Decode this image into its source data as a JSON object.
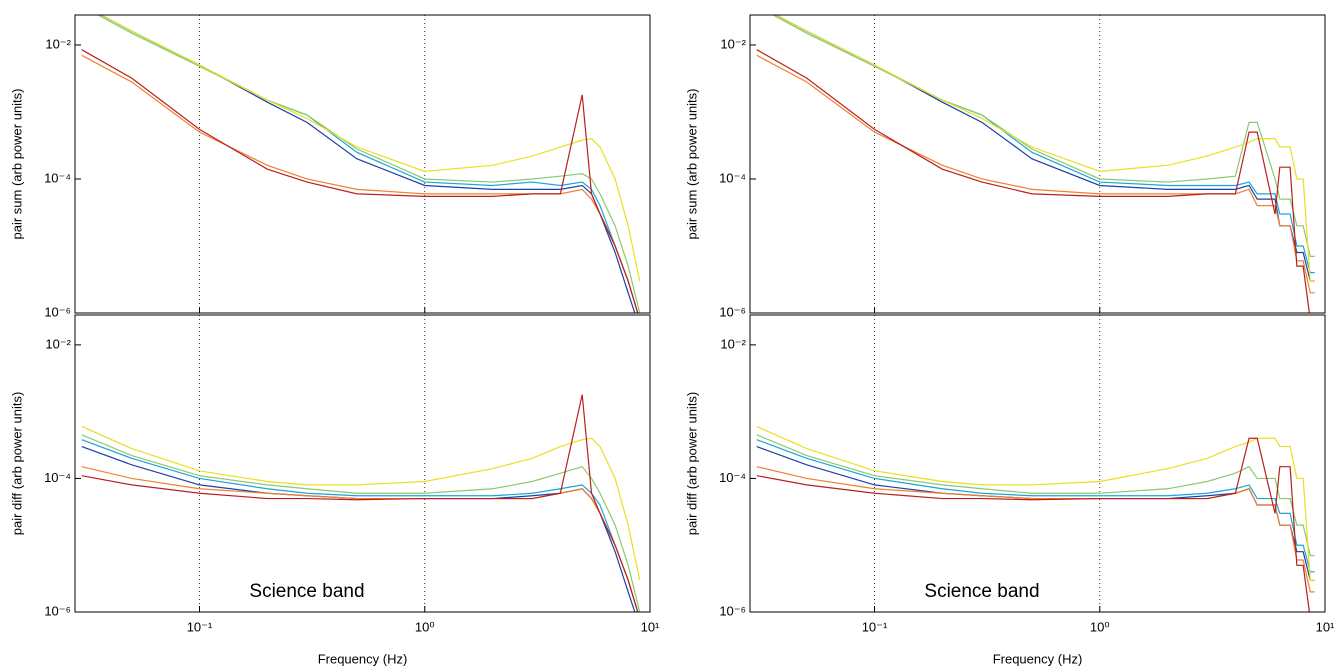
{
  "chart_data": [
    {
      "type": "line",
      "ylabel": "pair sum (arb power units)",
      "xlog": true,
      "ylog": true,
      "xlim": [
        0.028,
        10
      ],
      "ylim": [
        1e-06,
        0.028
      ],
      "xticks": [
        0.1,
        1,
        10
      ],
      "yticks": [
        {
          "value": 1e-06,
          "label": "10⁻⁶"
        },
        {
          "value": 0.0001,
          "label": "10⁻⁴"
        },
        {
          "value": 0.01,
          "label": "10⁻²"
        }
      ],
      "grid": true,
      "x": [
        0.03,
        0.05,
        0.1,
        0.2,
        0.3,
        0.5,
        1,
        2,
        3,
        4,
        5,
        5.5,
        6,
        7,
        8,
        9
      ],
      "series": [
        {
          "color": "#1f3fa8",
          "values": [
            0.04,
            0.016,
            0.005,
            0.0014,
            0.0007,
            0.0002,
            8e-05,
            7e-05,
            7e-05,
            7e-05,
            8e-05,
            6e-05,
            3e-05,
            8e-06,
            2e-06,
            6e-07
          ]
        },
        {
          "color": "#1aa6d8",
          "values": [
            0.04,
            0.016,
            0.005,
            0.0015,
            0.0009,
            0.00025,
            9e-05,
            8e-05,
            9e-05,
            8e-05,
            9e-05,
            7e-05,
            4e-05,
            1e-05,
            3e-06,
            8e-07
          ]
        },
        {
          "color": "#8cc870",
          "values": [
            0.038,
            0.015,
            0.0048,
            0.0015,
            0.0009,
            0.00028,
            0.0001,
            9e-05,
            0.0001,
            0.00011,
            0.00012,
            0.0001,
            6e-05,
            2e-05,
            5e-06,
            1e-06
          ]
        },
        {
          "color": "#e8e020",
          "values": [
            0.04,
            0.016,
            0.005,
            0.0015,
            0.0008,
            0.0003,
            0.00013,
            0.00016,
            0.00022,
            0.0003,
            0.00038,
            0.0004,
            0.0003,
            0.0001,
            2e-05,
            3e-06
          ]
        },
        {
          "color": "#f08030",
          "values": [
            0.007,
            0.0028,
            0.0005,
            0.00016,
            0.0001,
            7e-05,
            6e-05,
            6e-05,
            6e-05,
            6e-05,
            7e-05,
            5e-05,
            3e-05,
            1e-05,
            3e-06,
            8e-07
          ]
        },
        {
          "color": "#b8201c",
          "values": [
            0.0085,
            0.0032,
            0.00055,
            0.00014,
            9e-05,
            6e-05,
            5.5e-05,
            5.5e-05,
            6e-05,
            6e-05,
            0.0018,
            6e-05,
            3e-05,
            1e-05,
            3e-06,
            8e-07
          ]
        }
      ]
    },
    {
      "type": "line",
      "ylabel": "pair diff (arb power units)",
      "xlabel": "Frequency (Hz)",
      "annotation": "Science band",
      "xlog": true,
      "ylog": true,
      "xlim": [
        0.028,
        10
      ],
      "ylim": [
        1e-06,
        0.028
      ],
      "xticks": [
        {
          "value": 0.1,
          "label": "10⁻¹"
        },
        {
          "value": 1,
          "label": "10⁰"
        },
        {
          "value": 10,
          "label": "10¹"
        }
      ],
      "yticks": [
        {
          "value": 1e-06,
          "label": "10⁻⁶"
        },
        {
          "value": 0.0001,
          "label": "10⁻⁴"
        },
        {
          "value": 0.01,
          "label": "10⁻²"
        }
      ],
      "grid": true,
      "x": [
        0.03,
        0.05,
        0.1,
        0.2,
        0.3,
        0.5,
        1,
        2,
        3,
        4,
        5,
        5.5,
        6,
        7,
        8,
        9
      ],
      "series": [
        {
          "color": "#1f3fa8",
          "values": [
            0.0003,
            0.00016,
            8e-05,
            6e-05,
            5.5e-05,
            5e-05,
            5e-05,
            5e-05,
            5.5e-05,
            6e-05,
            7e-05,
            5e-05,
            3e-05,
            8e-06,
            2e-06,
            6e-07
          ]
        },
        {
          "color": "#1aa6d8",
          "values": [
            0.00038,
            0.0002,
            0.0001,
            7e-05,
            6e-05,
            5.5e-05,
            5.5e-05,
            5.5e-05,
            6e-05,
            7e-05,
            8e-05,
            6e-05,
            4e-05,
            1e-05,
            3e-06,
            8e-07
          ]
        },
        {
          "color": "#8cc870",
          "values": [
            0.00045,
            0.00022,
            0.00011,
            8e-05,
            7e-05,
            6e-05,
            6e-05,
            7e-05,
            9e-05,
            0.00012,
            0.00015,
            0.0001,
            6e-05,
            2e-05,
            5e-06,
            1e-06
          ]
        },
        {
          "color": "#e8e020",
          "values": [
            0.0006,
            0.00028,
            0.00013,
            9e-05,
            8e-05,
            8e-05,
            9e-05,
            0.00014,
            0.0002,
            0.0003,
            0.00038,
            0.0004,
            0.0003,
            0.0001,
            2e-05,
            3e-06
          ]
        },
        {
          "color": "#f08030",
          "values": [
            0.00015,
            0.0001,
            7e-05,
            6e-05,
            5.5e-05,
            5e-05,
            5e-05,
            5e-05,
            5e-05,
            6e-05,
            7e-05,
            5e-05,
            3e-05,
            1e-05,
            3e-06,
            8e-07
          ]
        },
        {
          "color": "#b8201c",
          "values": [
            0.00011,
            8e-05,
            6e-05,
            5e-05,
            5e-05,
            4.8e-05,
            5e-05,
            5e-05,
            5e-05,
            6e-05,
            0.0018,
            6e-05,
            3e-05,
            1e-05,
            3e-06,
            8e-07
          ]
        }
      ]
    },
    {
      "type": "line",
      "ylabel": "pair sum (arb power units)",
      "xlog": true,
      "ylog": true,
      "xlim": [
        0.028,
        10
      ],
      "ylim": [
        1e-06,
        0.028
      ],
      "xticks": [
        0.1,
        1,
        10
      ],
      "yticks": [
        {
          "value": 1e-06,
          "label": "10⁻⁶"
        },
        {
          "value": 0.0001,
          "label": "10⁻⁴"
        },
        {
          "value": 0.01,
          "label": "10⁻²"
        }
      ],
      "grid": true,
      "x": [
        0.03,
        0.05,
        0.1,
        0.2,
        0.3,
        0.5,
        1,
        2,
        3,
        4,
        4.6,
        5,
        6,
        6.3,
        7,
        7.5,
        8,
        8.6,
        9
      ],
      "series": [
        {
          "color": "#1f3fa8",
          "values": [
            0.04,
            0.016,
            0.005,
            0.0014,
            0.0007,
            0.0002,
            8e-05,
            7e-05,
            7e-05,
            7e-05,
            8e-05,
            5e-05,
            5e-05,
            2e-05,
            2e-05,
            8e-06,
            8e-06,
            3e-06,
            3e-06
          ]
        },
        {
          "color": "#1aa6d8",
          "values": [
            0.04,
            0.016,
            0.005,
            0.0015,
            0.0009,
            0.00025,
            9e-05,
            8e-05,
            8e-05,
            8e-05,
            9e-05,
            6e-05,
            6e-05,
            3e-05,
            3e-05,
            1e-05,
            1e-05,
            4e-06,
            4e-06
          ]
        },
        {
          "color": "#8cc870",
          "values": [
            0.038,
            0.015,
            0.0048,
            0.0015,
            0.0009,
            0.00028,
            0.0001,
            9e-05,
            0.0001,
            0.00011,
            0.0007,
            0.0007,
            0.0001,
            5e-05,
            5e-05,
            2e-05,
            2e-05,
            7e-06,
            7e-06
          ]
        },
        {
          "color": "#e8e020",
          "values": [
            0.04,
            0.016,
            0.005,
            0.0015,
            0.0008,
            0.0003,
            0.00013,
            0.00016,
            0.00022,
            0.0003,
            0.00035,
            0.0004,
            0.0004,
            0.0003,
            0.0003,
            0.0001,
            0.0001,
            3e-06,
            3e-06
          ]
        },
        {
          "color": "#f08030",
          "values": [
            0.007,
            0.0028,
            0.0005,
            0.00016,
            0.0001,
            7e-05,
            6e-05,
            6e-05,
            6e-05,
            6e-05,
            7e-05,
            4e-05,
            4e-05,
            2e-05,
            2e-05,
            6e-06,
            6e-06,
            2e-06,
            2e-06
          ]
        },
        {
          "color": "#b8201c",
          "values": [
            0.0085,
            0.0032,
            0.00055,
            0.00014,
            9e-05,
            6e-05,
            5.5e-05,
            5.5e-05,
            6e-05,
            6e-05,
            0.0005,
            0.0005,
            3e-05,
            0.00015,
            0.00015,
            5e-06,
            5e-06,
            8e-07,
            8e-07
          ]
        }
      ]
    },
    {
      "type": "line",
      "ylabel": "pair diff (arb power units)",
      "xlabel": "Frequency (Hz)",
      "annotation": "Science band",
      "xlog": true,
      "ylog": true,
      "xlim": [
        0.028,
        10
      ],
      "ylim": [
        1e-06,
        0.028
      ],
      "xticks": [
        {
          "value": 0.1,
          "label": "10⁻¹"
        },
        {
          "value": 1,
          "label": "10⁰"
        },
        {
          "value": 10,
          "label": "10¹"
        }
      ],
      "yticks": [
        {
          "value": 1e-06,
          "label": "10⁻⁶"
        },
        {
          "value": 0.0001,
          "label": "10⁻⁴"
        },
        {
          "value": 0.01,
          "label": "10⁻²"
        }
      ],
      "grid": true,
      "x": [
        0.03,
        0.05,
        0.1,
        0.2,
        0.3,
        0.5,
        1,
        2,
        3,
        4,
        4.6,
        5,
        6,
        6.3,
        7,
        7.5,
        8,
        8.6,
        9
      ],
      "series": [
        {
          "color": "#1f3fa8",
          "values": [
            0.0003,
            0.00016,
            8e-05,
            6e-05,
            5.5e-05,
            5e-05,
            5e-05,
            5e-05,
            5.5e-05,
            6e-05,
            7e-05,
            4e-05,
            4e-05,
            2e-05,
            2e-05,
            8e-06,
            8e-06,
            3e-06,
            3e-06
          ]
        },
        {
          "color": "#1aa6d8",
          "values": [
            0.00038,
            0.0002,
            0.0001,
            7e-05,
            6e-05,
            5.5e-05,
            5.5e-05,
            5.5e-05,
            6e-05,
            7e-05,
            8e-05,
            5e-05,
            5e-05,
            3e-05,
            3e-05,
            1e-05,
            1e-05,
            4e-06,
            4e-06
          ]
        },
        {
          "color": "#8cc870",
          "values": [
            0.00045,
            0.00022,
            0.00011,
            8e-05,
            7e-05,
            6e-05,
            6e-05,
            7e-05,
            9e-05,
            0.00012,
            0.00015,
            0.0001,
            0.0001,
            5e-05,
            5e-05,
            2e-05,
            2e-05,
            7e-06,
            7e-06
          ]
        },
        {
          "color": "#e8e020",
          "values": [
            0.0006,
            0.00028,
            0.00013,
            9e-05,
            8e-05,
            8e-05,
            9e-05,
            0.00014,
            0.0002,
            0.0003,
            0.00035,
            0.0004,
            0.0004,
            0.0003,
            0.0003,
            0.0001,
            0.0001,
            3e-06,
            3e-06
          ]
        },
        {
          "color": "#f08030",
          "values": [
            0.00015,
            0.0001,
            7e-05,
            6e-05,
            5.5e-05,
            5e-05,
            5e-05,
            5e-05,
            5e-05,
            6e-05,
            7e-05,
            4e-05,
            4e-05,
            2e-05,
            2e-05,
            6e-06,
            6e-06,
            2e-06,
            2e-06
          ]
        },
        {
          "color": "#b8201c",
          "values": [
            0.00011,
            8e-05,
            6e-05,
            5e-05,
            5e-05,
            4.8e-05,
            5e-05,
            5e-05,
            5e-05,
            6e-05,
            0.0004,
            0.0004,
            3e-05,
            0.00015,
            0.00015,
            5e-06,
            5e-06,
            8e-07,
            8e-07
          ]
        }
      ]
    }
  ]
}
